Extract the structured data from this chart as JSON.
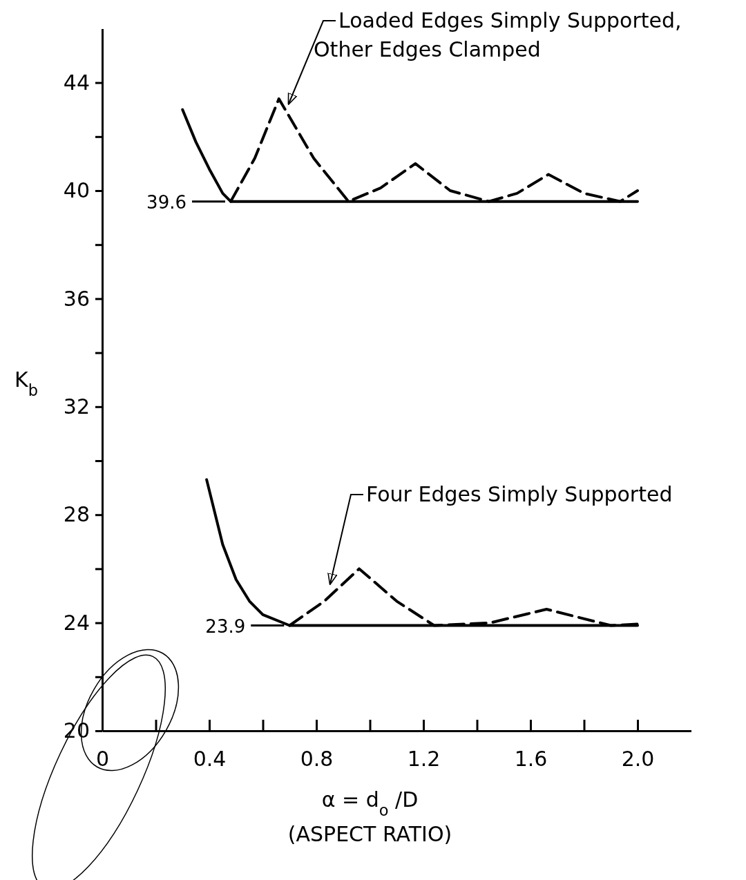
{
  "chart_data": {
    "type": "line",
    "xlabel": "α = d$_{o}$/D\n(ASPECT RATIO)",
    "ylabel": "K$_{b}$",
    "xlim": [
      0,
      2.2
    ],
    "ylim": [
      20,
      46
    ],
    "xticks": [
      0,
      {
        "value": 0.2,
        "label": null
      },
      0.4,
      {
        "value": 0.6,
        "label": null
      },
      0.8,
      {
        "value": 1.0,
        "label": null
      },
      1.2,
      {
        "value": 1.4,
        "label": null
      },
      1.6,
      {
        "value": 1.8,
        "label": null
      },
      {
        "value": 2.0,
        "label": "2.0"
      }
    ],
    "yticks": [
      20,
      {
        "value": 22,
        "label": null
      },
      24,
      {
        "value": 26,
        "label": null
      },
      28,
      {
        "value": 30,
        "label": null
      },
      32,
      {
        "value": 34,
        "label": null
      },
      36,
      {
        "value": 38,
        "label": null
      },
      40,
      {
        "value": 42,
        "label": null
      },
      44
    ],
    "grid": false,
    "ref_lines": [
      {
        "axis": "y",
        "value": 39.6,
        "label": "39.6"
      },
      {
        "axis": "y",
        "value": 23.9,
        "label": "23.9"
      }
    ],
    "series": [
      {
        "color": "#000000",
        "line_style": "solid",
        "x": [
          0.3,
          0.35,
          0.4,
          0.45,
          0.48,
          2.0
        ],
        "values": [
          43.0,
          41.8,
          40.8,
          39.9,
          39.6,
          39.6
        ]
      },
      {
        "color": "#000000",
        "line_style": "dashed",
        "x": [
          0.48,
          0.57,
          0.66,
          0.79,
          0.92,
          1.04,
          1.17,
          1.3,
          1.445,
          1.55,
          1.667,
          1.8,
          1.935,
          2.0
        ],
        "values": [
          39.6,
          41.2,
          43.4,
          41.2,
          39.6,
          40.1,
          41.0,
          40.0,
          39.6,
          39.9,
          40.6,
          39.9,
          39.6,
          40.0
        ]
      },
      {
        "color": "#000000",
        "line_style": "solid",
        "x": [
          0.39,
          0.45,
          0.5,
          0.55,
          0.6,
          0.7,
          2.0
        ],
        "values": [
          29.3,
          26.9,
          25.6,
          24.8,
          24.3,
          23.9,
          23.9
        ]
      },
      {
        "color": "#000000",
        "line_style": "dashed",
        "x": [
          0.7,
          0.83,
          0.96,
          1.1,
          1.24,
          1.45,
          1.66,
          1.9,
          2.0
        ],
        "values": [
          23.9,
          24.8,
          26.0,
          24.8,
          23.9,
          24.0,
          24.5,
          23.9,
          23.95
        ]
      }
    ],
    "annotations": [
      "Loaded Edges Simply Supported,\nOther Edges Clamped",
      "Four Edges Simply Supported"
    ]
  }
}
